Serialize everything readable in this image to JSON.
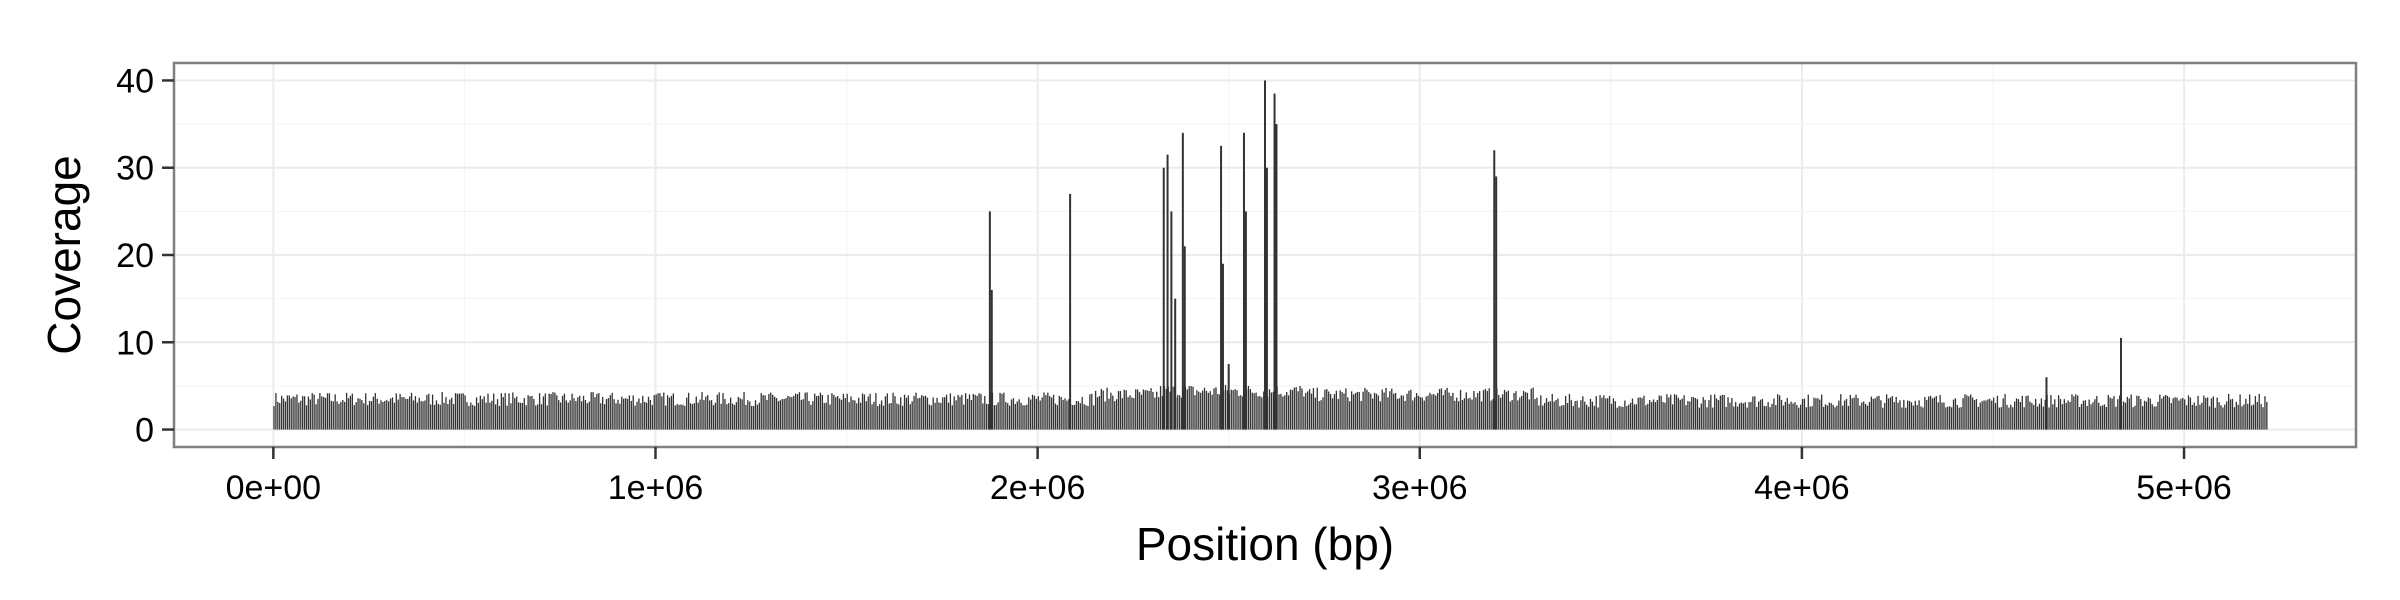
{
  "chart_data": {
    "type": "bar",
    "title": "",
    "xlabel": "Position (bp)",
    "ylabel": "Coverage",
    "xlim": [
      -260000,
      5450000
    ],
    "ylim": [
      -2,
      42
    ],
    "x_ticks": [
      0,
      1000000,
      2000000,
      3000000,
      4000000,
      5000000
    ],
    "x_tick_labels": [
      "0e+00",
      "1e+06",
      "2e+06",
      "3e+06",
      "4e+06",
      "5e+06"
    ],
    "y_ticks": [
      0,
      10,
      20,
      30,
      40
    ],
    "y_tick_labels": [
      "0",
      "10",
      "20",
      "30",
      "40"
    ],
    "grid": true,
    "legend": "none",
    "bar_color": "#333333",
    "baseline_segments": [
      {
        "x": [
          0,
          2150000
        ],
        "level": 3.5
      },
      {
        "x": [
          2150000,
          2320000
        ],
        "level": 4.0
      },
      {
        "x": [
          2320000,
          2700000
        ],
        "level": 4.4
      },
      {
        "x": [
          2700000,
          3300000
        ],
        "level": 4.0
      },
      {
        "x": [
          3300000,
          5220000
        ],
        "level": 3.3
      }
    ],
    "spikes": [
      {
        "x": 1875000,
        "y": 25
      },
      {
        "x": 1880000,
        "y": 16
      },
      {
        "x": 2085000,
        "y": 27
      },
      {
        "x": 2330000,
        "y": 30
      },
      {
        "x": 2340000,
        "y": 31.5
      },
      {
        "x": 2350000,
        "y": 25
      },
      {
        "x": 2360000,
        "y": 15
      },
      {
        "x": 2380000,
        "y": 34
      },
      {
        "x": 2385000,
        "y": 21
      },
      {
        "x": 2480000,
        "y": 32.5
      },
      {
        "x": 2485000,
        "y": 19
      },
      {
        "x": 2500000,
        "y": 7.5
      },
      {
        "x": 2540000,
        "y": 34
      },
      {
        "x": 2545000,
        "y": 25
      },
      {
        "x": 2595000,
        "y": 40
      },
      {
        "x": 2600000,
        "y": 30
      },
      {
        "x": 2620000,
        "y": 38.5
      },
      {
        "x": 2625000,
        "y": 35
      },
      {
        "x": 3195000,
        "y": 32
      },
      {
        "x": 3200000,
        "y": 29
      },
      {
        "x": 4640000,
        "y": 6
      },
      {
        "x": 4835000,
        "y": 10.5
      }
    ]
  }
}
